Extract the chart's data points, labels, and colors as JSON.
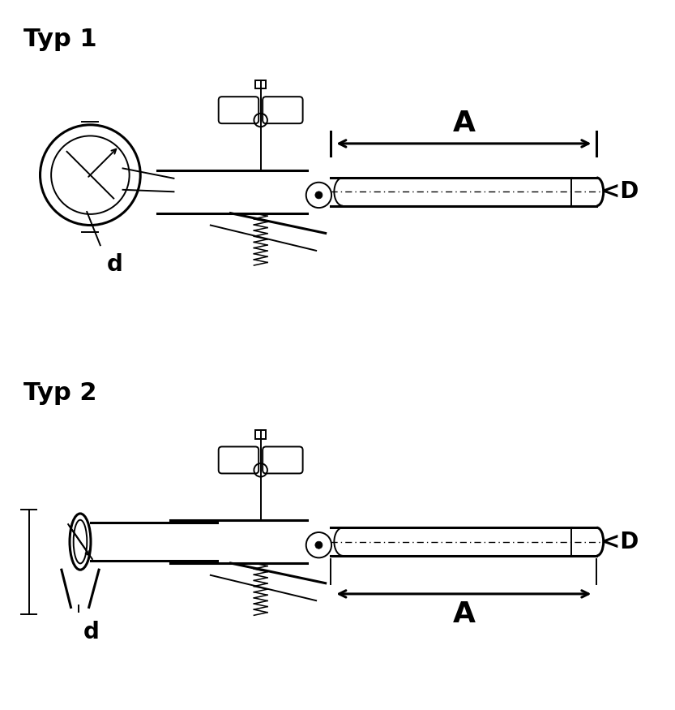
{
  "title1": "Typ 1",
  "title2": "Typ 2",
  "label_A": "A",
  "label_D": "<D",
  "label_d": "d",
  "bg_color": "#ffffff",
  "line_color": "#000000",
  "title_fontsize": 22,
  "label_fontsize": 20,
  "dim_fontsize": 18
}
